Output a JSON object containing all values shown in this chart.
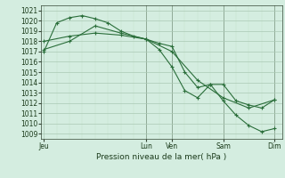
{
  "title": "Pression niveau de la mer( hPa )",
  "bg_color": "#d4ede0",
  "grid_color_major": "#aac8b4",
  "grid_color_minor": "#c4dfc8",
  "line_color": "#2a6e3a",
  "marker_color": "#2a6e3a",
  "ylim": [
    1008.5,
    1021.5
  ],
  "yticks": [
    1009,
    1010,
    1011,
    1012,
    1013,
    1014,
    1015,
    1016,
    1017,
    1018,
    1019,
    1020,
    1021
  ],
  "x_ticks_labels": [
    "Jeu",
    "Lun",
    "Ven",
    "Sam",
    "Dim"
  ],
  "x_ticks_pos": [
    0,
    4,
    5,
    7,
    9
  ],
  "xlim": [
    -0.1,
    9.3
  ],
  "vlines": [
    4,
    5,
    7,
    9
  ],
  "series1_x": [
    0,
    0.5,
    1,
    1.5,
    2,
    2.5,
    3,
    3.5,
    4,
    4.5,
    5,
    5.5,
    6,
    6.5,
    7,
    7.5,
    8,
    8.5,
    9
  ],
  "series1_y": [
    1017.0,
    1019.8,
    1020.3,
    1020.5,
    1020.2,
    1019.8,
    1019.0,
    1018.5,
    1018.2,
    1017.2,
    1015.5,
    1013.2,
    1012.5,
    1013.8,
    1012.2,
    1010.8,
    1009.8,
    1009.2,
    1009.5
  ],
  "series2_x": [
    0,
    1,
    2,
    3,
    4,
    4.5,
    5,
    5.5,
    6,
    6.5,
    7,
    7.5,
    8,
    8.5,
    9
  ],
  "series2_y": [
    1018.0,
    1018.5,
    1018.8,
    1018.6,
    1018.2,
    1017.8,
    1017.5,
    1015.0,
    1013.5,
    1013.8,
    1013.8,
    1012.2,
    1011.8,
    1011.5,
    1012.3
  ],
  "series3_x": [
    0,
    1,
    2,
    3,
    4,
    5,
    6,
    7,
    8,
    9
  ],
  "series3_y": [
    1017.2,
    1018.0,
    1019.5,
    1018.8,
    1018.2,
    1017.0,
    1014.2,
    1012.5,
    1011.5,
    1012.3
  ]
}
